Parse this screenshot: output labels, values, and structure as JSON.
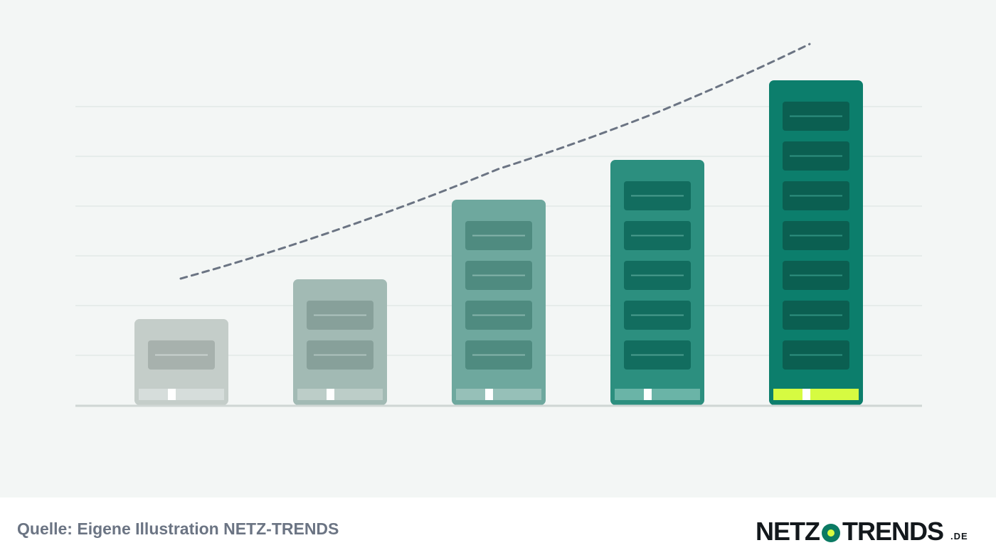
{
  "illustration": {
    "levels": [
      {
        "modules": 1,
        "body_color": "#c4cdc9",
        "module_color": "#a7b1ad",
        "line_color": "#c9d1ce",
        "bar_color": "#d6dddb"
      },
      {
        "modules": 2,
        "body_color": "#a2bab4",
        "module_color": "#87a09a",
        "line_color": "#aec2bd",
        "bar_color": "#bccdc8"
      },
      {
        "modules": 4,
        "body_color": "#6ea89e",
        "module_color": "#4f8b80",
        "line_color": "#84b3aa",
        "bar_color": "#96c0b8"
      },
      {
        "modules": 5,
        "body_color": "#2c8f7f",
        "module_color": "#126d5f",
        "line_color": "#4a9c8e",
        "bar_color": "#6ab4a7"
      },
      {
        "modules": 7,
        "body_color": "#0c7e6c",
        "module_color": "#0b5f51",
        "line_color": "#2f8f7f",
        "bar_color": "#d6fb41"
      }
    ],
    "trend_line_color": "#6b7483",
    "gridline_color": "#e2e8e6",
    "baseline_color": "#cfd6d4"
  },
  "footer": {
    "source": "Quelle: Eigene Illustration NETZ-TRENDS",
    "logo": {
      "part1": "NETZ",
      "part2": "TRENDS",
      "tld": ".DE",
      "dot_color": "#0b7a63",
      "dot_accent": "#d6fb41"
    }
  }
}
